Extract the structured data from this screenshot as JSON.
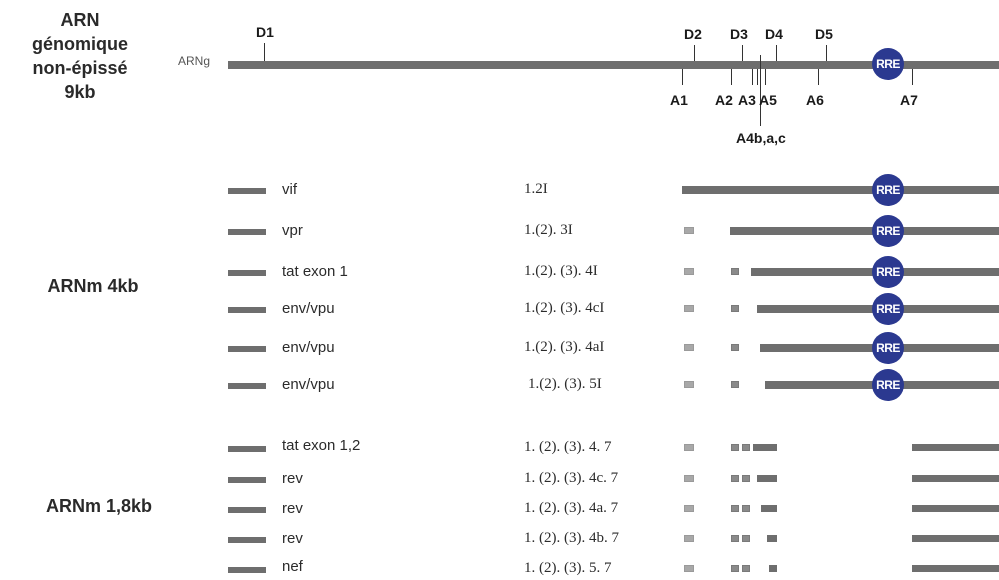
{
  "titles": {
    "genomic": "ARN\ngénomique\nnon-épissé\n9kb",
    "mrna4": "ARNm 4kb",
    "mrna18": "ARNm 1,8kb"
  },
  "genome": {
    "label": "ARNg",
    "rre": "RRE",
    "donors": [
      "D1",
      "D2",
      "D3",
      "D4",
      "D5"
    ],
    "acceptors": [
      "A1",
      "A2",
      "A3",
      "A5",
      "A6",
      "A7"
    ],
    "a4_label": "A4b,a,c"
  },
  "transcripts_4kb": [
    {
      "name": "vif",
      "code": "1.2I"
    },
    {
      "name": "vpr",
      "code": "1.(2). 3I"
    },
    {
      "name": "tat exon 1",
      "code": "1.(2). (3). 4I"
    },
    {
      "name": "env/vpu",
      "code": "1.(2). (3). 4cI"
    },
    {
      "name": "env/vpu",
      "code": "1.(2). (3). 4aI"
    },
    {
      "name": "env/vpu",
      "code": "1.(2). (3). 5I"
    }
  ],
  "transcripts_18kb": [
    {
      "name": "tat exon 1,2",
      "code": "1. (2). (3). 4. 7"
    },
    {
      "name": "rev",
      "code": "1. (2). (3). 4c. 7"
    },
    {
      "name": "rev",
      "code": "1. (2). (3). 4a. 7"
    },
    {
      "name": "rev",
      "code": "1. (2). (3). 4b. 7"
    },
    {
      "name": "nef",
      "code": "1. (2). (3). 5. 7"
    }
  ],
  "colors": {
    "bar": "#6e6e6e",
    "rre": "#2b3990",
    "exon_small": "#a8a8a8"
  }
}
